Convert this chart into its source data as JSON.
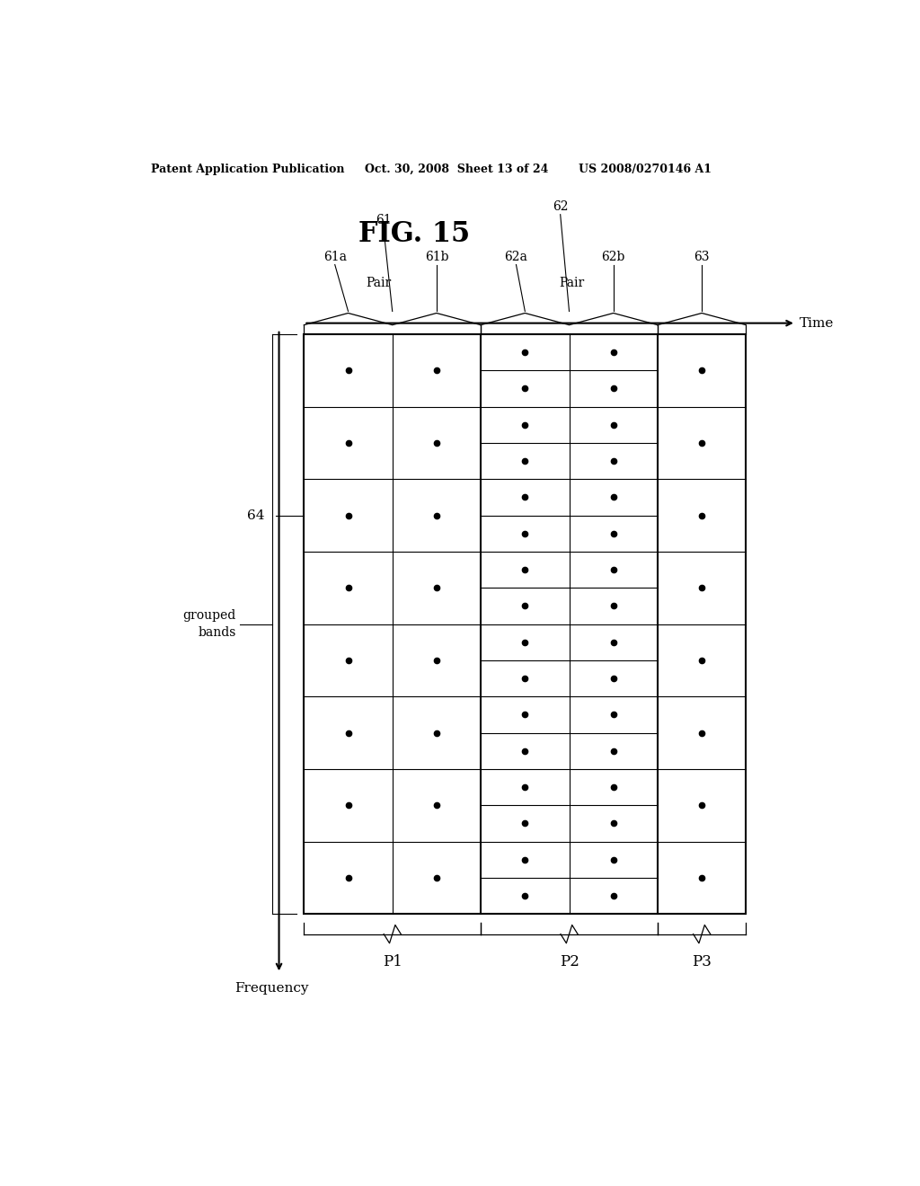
{
  "title": "FIG. 15",
  "header_left": "Patent Application Publication",
  "header_mid": "Oct. 30, 2008  Sheet 13 of 24",
  "header_right": "US 2008/0270146 A1",
  "bg_color": "#ffffff",
  "label_64": "64",
  "label_grouped": "grouped\nbands",
  "label_time": "Time",
  "label_frequency": "Frequency",
  "label_P1": "P1",
  "label_P2": "P2",
  "label_P3": "P3",
  "label_pair1": "Pair",
  "label_pair2": "Pair",
  "labels_top": [
    "61a",
    "61",
    "61b",
    "62a",
    "62",
    "62b",
    "63"
  ]
}
